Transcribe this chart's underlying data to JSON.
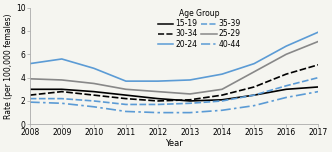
{
  "years": [
    2008,
    2009,
    2010,
    2011,
    2012,
    2013,
    2014,
    2015,
    2016,
    2017
  ],
  "series": {
    "15-19": [
      3.0,
      3.0,
      2.8,
      2.5,
      2.2,
      2.0,
      2.1,
      2.5,
      3.0,
      3.2
    ],
    "20-24": [
      5.2,
      5.6,
      4.8,
      3.7,
      3.7,
      3.8,
      4.3,
      5.2,
      6.7,
      7.9
    ],
    "25-29": [
      3.9,
      3.8,
      3.5,
      3.0,
      2.8,
      2.6,
      3.0,
      4.5,
      6.0,
      7.1
    ],
    "30-34": [
      2.5,
      2.8,
      2.5,
      2.2,
      2.0,
      2.1,
      2.5,
      3.2,
      4.3,
      5.1
    ],
    "35-39": [
      2.2,
      2.2,
      2.0,
      1.7,
      1.7,
      1.8,
      2.0,
      2.5,
      3.3,
      4.0
    ],
    "40-44": [
      1.9,
      1.8,
      1.5,
      1.1,
      1.0,
      1.0,
      1.2,
      1.6,
      2.3,
      2.8
    ]
  },
  "line_colors": {
    "15-19": "#000000",
    "20-24": "#5b9bd5",
    "25-29": "#888888",
    "30-34": "#000000",
    "35-39": "#5b9bd5",
    "40-44": "#5b9bd5"
  },
  "line_styles": {
    "15-19": "solid",
    "20-24": "solid",
    "25-29": "solid",
    "30-34": "dashed",
    "35-39": "dashed",
    "40-44": "dashed"
  },
  "dash_patterns": {
    "15-19": null,
    "20-24": null,
    "25-29": null,
    "30-34": [
      4,
      1.5
    ],
    "35-39": [
      4,
      1.5
    ],
    "40-44": [
      6,
      2,
      1.5,
      2
    ]
  },
  "linewidths": {
    "15-19": 1.2,
    "20-24": 1.2,
    "25-29": 1.2,
    "30-34": 1.2,
    "35-39": 1.2,
    "40-44": 1.2
  },
  "ylabel": "Rate (per 100,000 females)",
  "xlabel": "Year",
  "legend_title": "Age Group",
  "ylim": [
    0,
    10
  ],
  "yticks": [
    0,
    2,
    4,
    6,
    8,
    10
  ],
  "background_color": "#f5f5f0",
  "axis_bg": "#f5f5f0",
  "ylabel_fontsize": 5.5,
  "xlabel_fontsize": 6.0,
  "tick_fontsize": 5.5,
  "legend_fontsize": 5.5,
  "legend_title_fontsize": 5.5,
  "legend_col1": [
    "15-19",
    "20-24",
    "25-29"
  ],
  "legend_col2": [
    "30-34",
    "35-39",
    "40-44"
  ]
}
